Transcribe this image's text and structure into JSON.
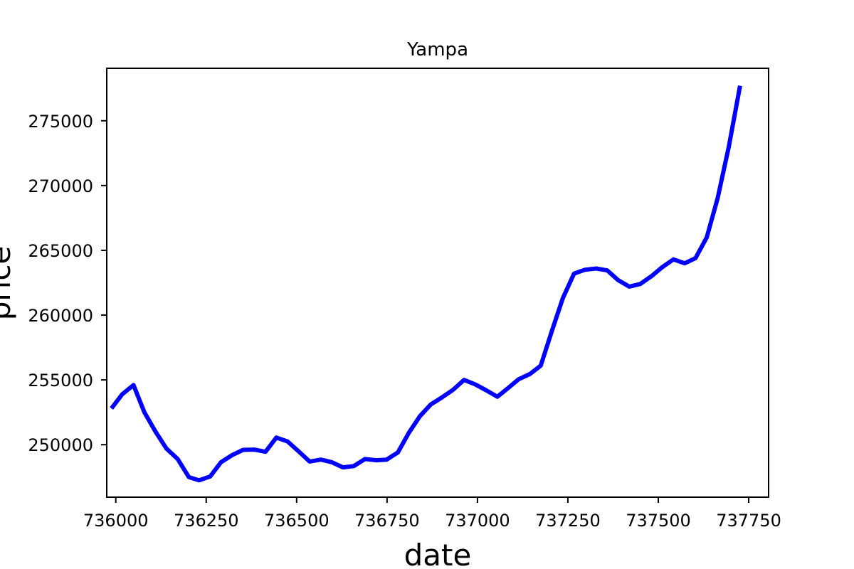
{
  "chart_data": {
    "type": "line",
    "title": "Yampa",
    "xlabel": "date",
    "ylabel": "price",
    "xlim": [
      735975,
      737805
    ],
    "ylim": [
      245950,
      279050
    ],
    "xticks": [
      736000,
      736250,
      736500,
      736750,
      737000,
      737250,
      737500,
      737750
    ],
    "yticks": [
      250000,
      255000,
      260000,
      265000,
      270000,
      275000
    ],
    "grid": false,
    "series": [
      {
        "color": "#0000ff",
        "x": [
          735988,
          736018,
          736049,
          736079,
          736110,
          736140,
          736171,
          736202,
          736230,
          736261,
          736291,
          736322,
          736352,
          736383,
          736414,
          736444,
          736475,
          736505,
          736536,
          736567,
          736597,
          736628,
          736658,
          736689,
          736720,
          736749,
          736780,
          736810,
          736841,
          736871,
          736902,
          736933,
          736963,
          736994,
          737024,
          737055,
          737086,
          737114,
          737145,
          737175,
          737206,
          737236,
          737267,
          737297,
          737328,
          737359,
          737389,
          737420,
          737450,
          737481,
          737511,
          737542,
          737573,
          737603,
          737634,
          737664,
          737695,
          737726
        ],
        "y": [
          252800,
          253900,
          254600,
          252500,
          251000,
          249700,
          248900,
          247500,
          247250,
          247550,
          248650,
          249200,
          249600,
          249620,
          249450,
          250550,
          250250,
          249500,
          248700,
          248850,
          248650,
          248250,
          248350,
          248900,
          248800,
          248850,
          249400,
          250900,
          252200,
          253100,
          253650,
          254250,
          255000,
          254650,
          254200,
          253700,
          254400,
          255050,
          255450,
          256100,
          258800,
          261300,
          263200,
          263500,
          263600,
          263450,
          262700,
          262200,
          262400,
          263000,
          263700,
          264300,
          264000,
          264400,
          266000,
          269000,
          273000,
          277700
        ]
      }
    ]
  }
}
